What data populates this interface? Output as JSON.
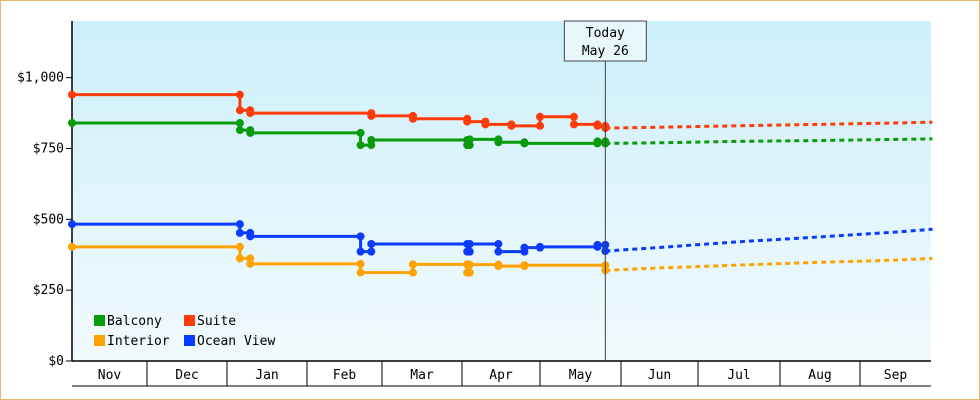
{
  "chart_data": {
    "type": "line",
    "title": "",
    "xlabel": "",
    "ylabel": "",
    "ylim": [
      0,
      1200
    ],
    "y_ticks": [
      0,
      250,
      500,
      750,
      1000
    ],
    "y_tick_labels": [
      "$0",
      "$250",
      "$500",
      "$750",
      "$1,000"
    ],
    "x_month_labels": [
      "Nov",
      "Dec",
      "Jan",
      "Feb",
      "Mar",
      "Apr",
      "May",
      "Jun",
      "Jul",
      "Aug",
      "Sep"
    ],
    "today_marker": {
      "line1": "Today",
      "line2": "May 26"
    },
    "legend_position": "bottom-left",
    "grid": false,
    "colors": {
      "background_top": "#cdeffa",
      "background_bottom": "#f1fafd",
      "border": "#e8b872"
    },
    "series": [
      {
        "name": "Balcony",
        "color": "#0a9b0a",
        "points": [
          [
            "Nov 1",
            840
          ],
          [
            "Jan 6",
            840
          ],
          [
            "Jan 6",
            815
          ],
          [
            "Jan 10",
            815
          ],
          [
            "Jan 10",
            805
          ],
          [
            "Feb 21",
            805
          ],
          [
            "Feb 21",
            762
          ],
          [
            "Feb 25",
            762
          ],
          [
            "Feb 25",
            780
          ],
          [
            "Apr 3",
            780
          ],
          [
            "Apr 3",
            762
          ],
          [
            "Apr 4",
            762
          ],
          [
            "Apr 4",
            782
          ],
          [
            "Apr 15",
            782
          ],
          [
            "Apr 15",
            772
          ],
          [
            "Apr 25",
            772
          ],
          [
            "Apr 25",
            768
          ],
          [
            "May 23",
            768
          ],
          [
            "May 23",
            775
          ],
          [
            "May 26",
            775
          ],
          [
            "May 26",
            768
          ]
        ],
        "projection": [
          [
            "May 26",
            768
          ],
          [
            "Jun 15",
            770
          ],
          [
            "Jul 15",
            775
          ],
          [
            "Aug 15",
            778
          ],
          [
            "Sep 15",
            782
          ],
          [
            "Sep 30",
            784
          ]
        ]
      },
      {
        "name": "Suite",
        "color": "#ff3b0a",
        "points": [
          [
            "Nov 1",
            940
          ],
          [
            "Jan 6",
            940
          ],
          [
            "Jan 6",
            885
          ],
          [
            "Jan 10",
            885
          ],
          [
            "Jan 10",
            875
          ],
          [
            "Feb 25",
            875
          ],
          [
            "Feb 25",
            865
          ],
          [
            "Mar 13",
            865
          ],
          [
            "Mar 13",
            855
          ],
          [
            "Apr 3",
            855
          ],
          [
            "Apr 3",
            845
          ],
          [
            "Apr 10",
            845
          ],
          [
            "Apr 10",
            835
          ],
          [
            "Apr 20",
            835
          ],
          [
            "Apr 20",
            830
          ],
          [
            "May 1",
            830
          ],
          [
            "May 1",
            862
          ],
          [
            "May 14",
            862
          ],
          [
            "May 14",
            835
          ],
          [
            "May 23",
            835
          ],
          [
            "May 23",
            830
          ],
          [
            "May 26",
            830
          ],
          [
            "May 26",
            822
          ]
        ],
        "projection": [
          [
            "May 26",
            822
          ],
          [
            "Jun 15",
            825
          ],
          [
            "Jul 15",
            830
          ],
          [
            "Aug 15",
            835
          ],
          [
            "Sep 15",
            840
          ],
          [
            "Sep 30",
            843
          ]
        ]
      },
      {
        "name": "Interior",
        "color": "#ffa200",
        "points": [
          [
            "Nov 1",
            403
          ],
          [
            "Jan 6",
            403
          ],
          [
            "Jan 6",
            362
          ],
          [
            "Jan 10",
            362
          ],
          [
            "Jan 10",
            343
          ],
          [
            "Feb 21",
            343
          ],
          [
            "Feb 21",
            312
          ],
          [
            "Mar 13",
            312
          ],
          [
            "Mar 13",
            341
          ],
          [
            "Apr 3",
            341
          ],
          [
            "Apr 3",
            312
          ],
          [
            "Apr 4",
            312
          ],
          [
            "Apr 4",
            340
          ],
          [
            "Apr 15",
            340
          ],
          [
            "Apr 15",
            335
          ],
          [
            "Apr 25",
            335
          ],
          [
            "Apr 25",
            338
          ],
          [
            "May 26",
            338
          ],
          [
            "May 26",
            320
          ]
        ],
        "projection": [
          [
            "May 26",
            320
          ],
          [
            "Jun 15",
            328
          ],
          [
            "Jul 15",
            338
          ],
          [
            "Aug 15",
            348
          ],
          [
            "Sep 15",
            356
          ],
          [
            "Sep 30",
            362
          ]
        ]
      },
      {
        "name": "Ocean View",
        "color": "#0a3bff",
        "points": [
          [
            "Nov 1",
            483
          ],
          [
            "Jan 6",
            483
          ],
          [
            "Jan 6",
            452
          ],
          [
            "Jan 10",
            452
          ],
          [
            "Jan 10",
            440
          ],
          [
            "Feb 21",
            440
          ],
          [
            "Feb 21",
            386
          ],
          [
            "Feb 25",
            386
          ],
          [
            "Feb 25",
            413
          ],
          [
            "Apr 3",
            413
          ],
          [
            "Apr 3",
            386
          ],
          [
            "Apr 4",
            386
          ],
          [
            "Apr 4",
            413
          ],
          [
            "Apr 15",
            413
          ],
          [
            "Apr 15",
            386
          ],
          [
            "Apr 25",
            386
          ],
          [
            "Apr 25",
            400
          ],
          [
            "May 1",
            400
          ],
          [
            "May 1",
            403
          ],
          [
            "May 23",
            403
          ],
          [
            "May 23",
            410
          ],
          [
            "May 26",
            410
          ],
          [
            "May 26",
            388
          ]
        ],
        "projection": [
          [
            "May 26",
            388
          ],
          [
            "Jun 15",
            400
          ],
          [
            "Jul 15",
            420
          ],
          [
            "Aug 15",
            437
          ],
          [
            "Sep 15",
            455
          ],
          [
            "Sep 30",
            465
          ]
        ]
      }
    ]
  }
}
